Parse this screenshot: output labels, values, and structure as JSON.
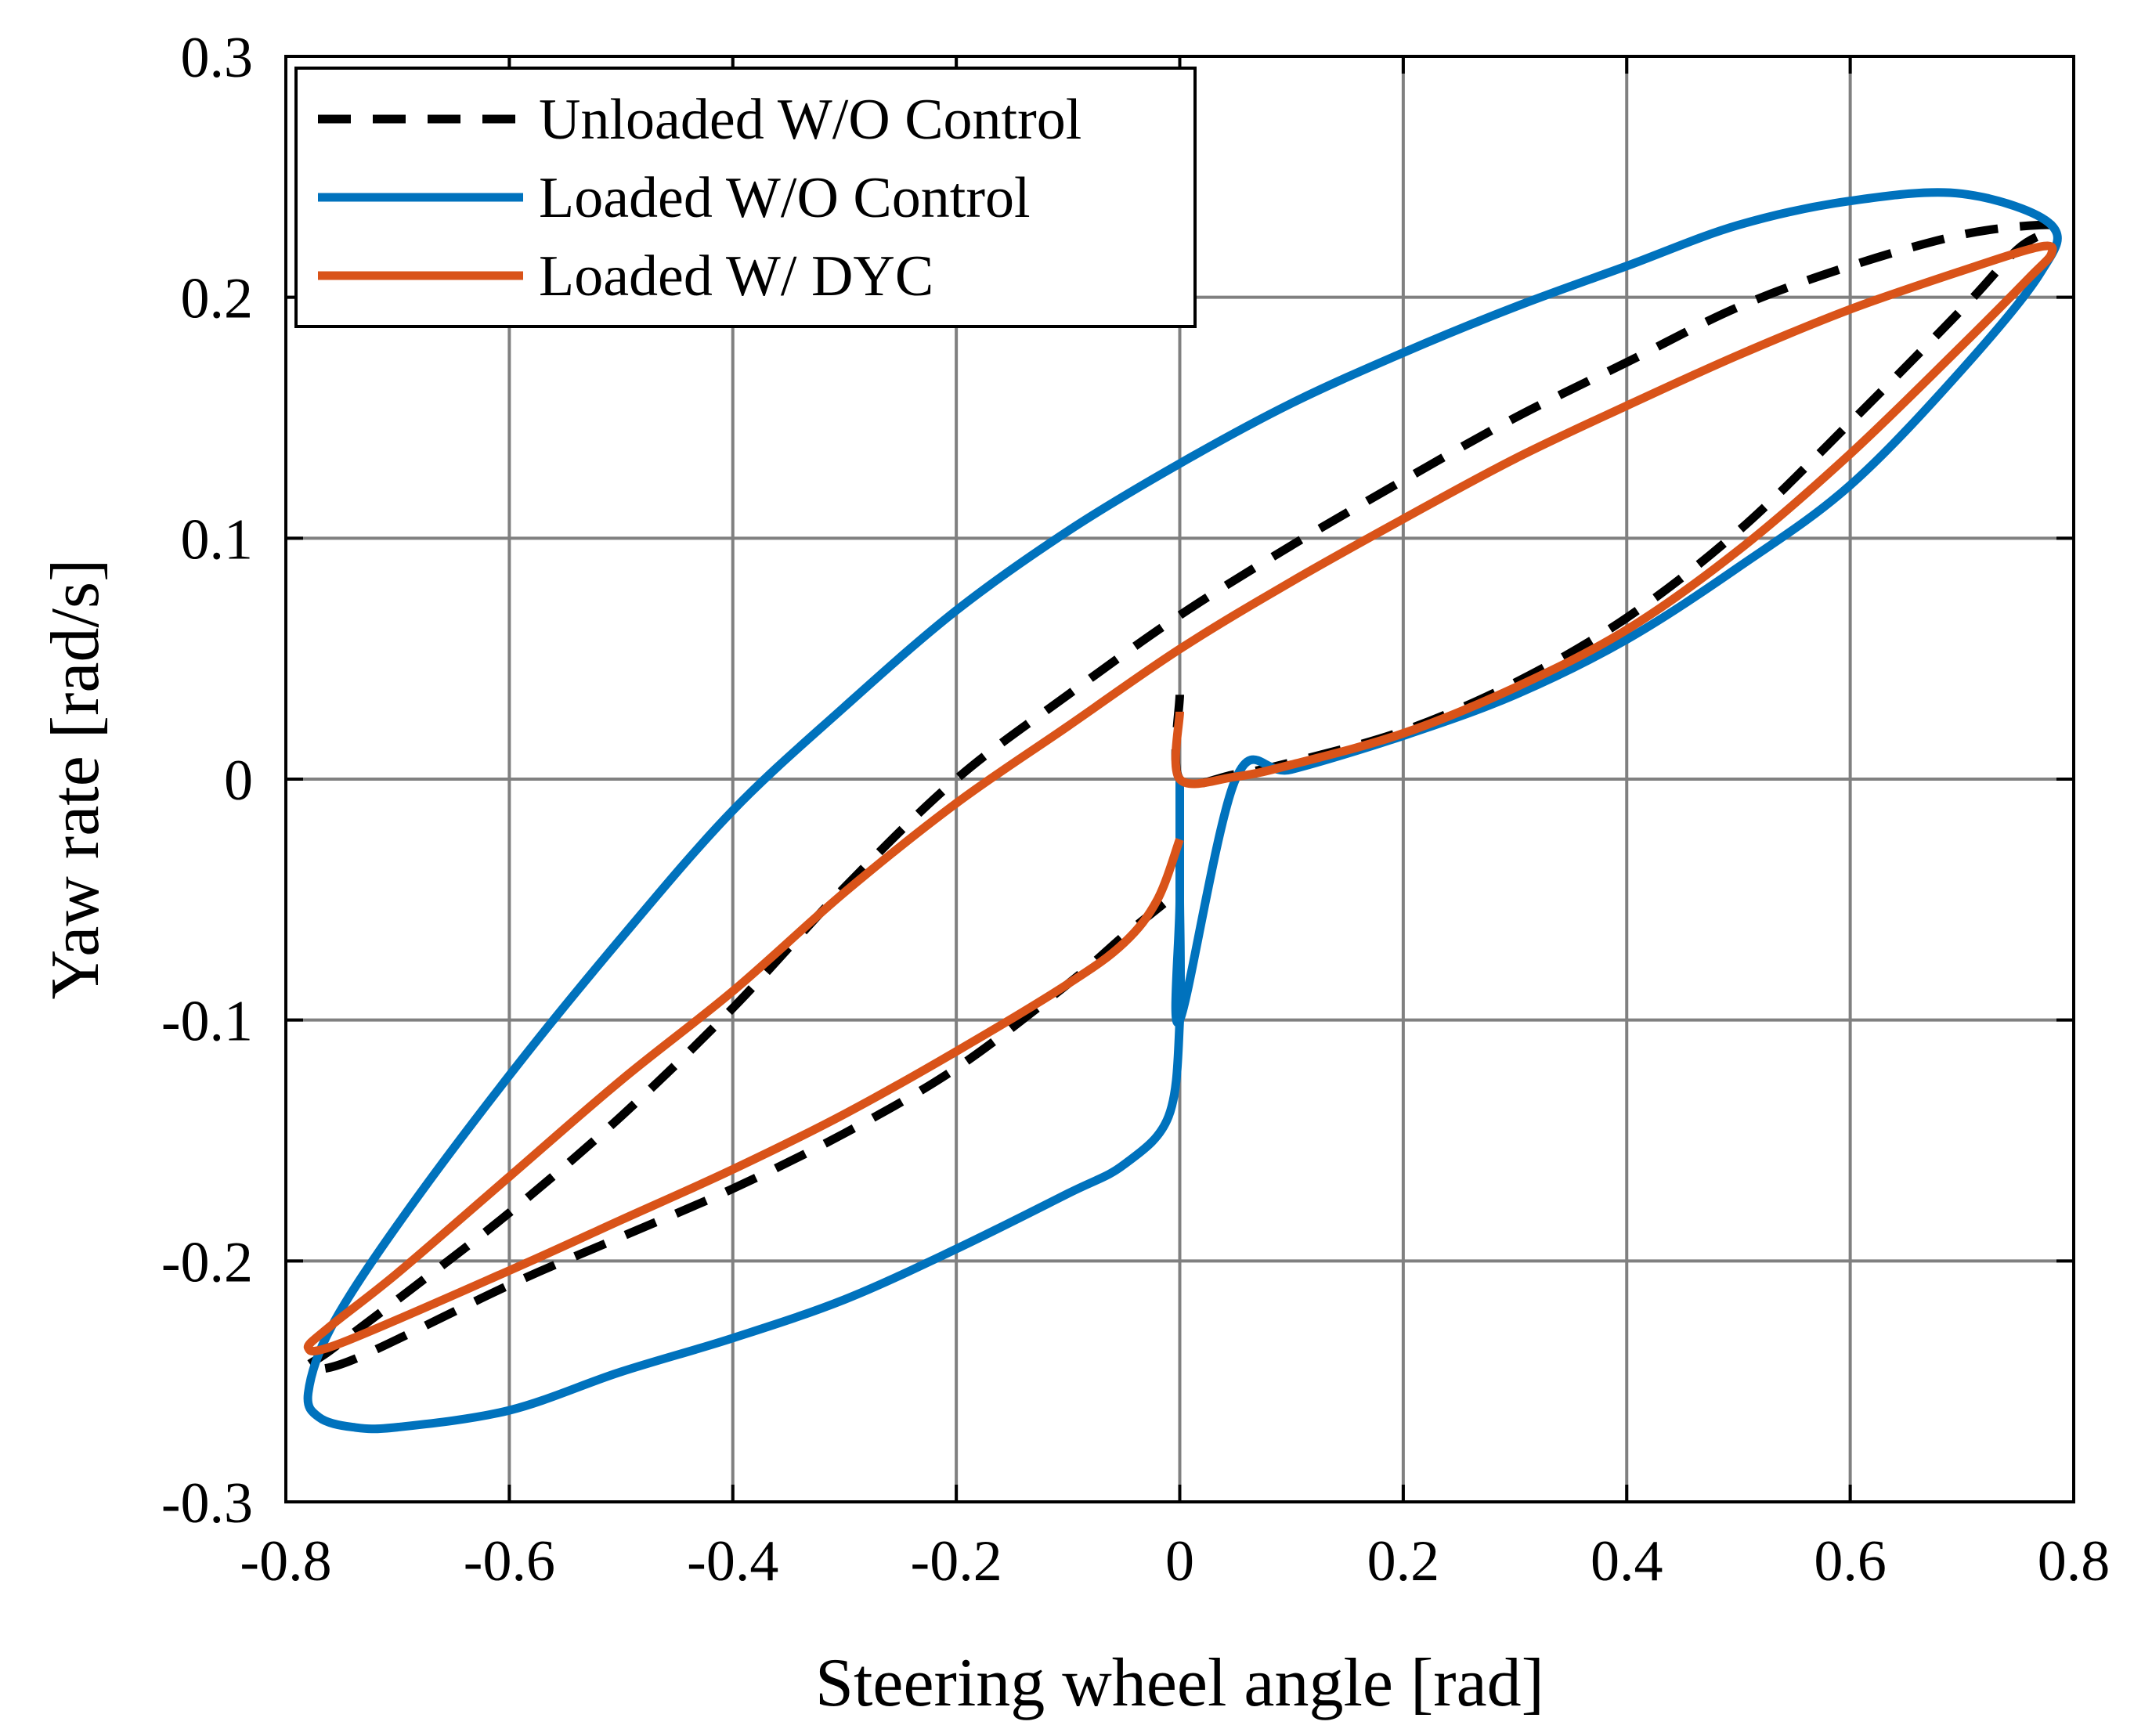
{
  "chart_data": {
    "type": "line",
    "title": "",
    "xlabel": "Steering wheel angle [rad]",
    "ylabel": "Yaw rate [rad/s]",
    "xlim": [
      -0.8,
      0.8
    ],
    "ylim": [
      -0.3,
      0.3
    ],
    "grid": true,
    "legend_position": "top-left",
    "x_ticks": [
      -0.8,
      -0.6,
      -0.4,
      -0.2,
      0,
      0.2,
      0.4,
      0.6,
      0.8
    ],
    "x_tick_labels": [
      "-0.8",
      "-0.6",
      "-0.4",
      "-0.2",
      "0",
      "0.2",
      "0.4",
      "0.6",
      "0.8"
    ],
    "y_ticks": [
      -0.3,
      -0.2,
      -0.1,
      0,
      0.1,
      0.2,
      0.3
    ],
    "y_tick_labels": [
      "-0.3",
      "-0.2",
      "-0.1",
      "0",
      "0.1",
      "0.2",
      "0.3"
    ],
    "series": [
      {
        "name": "Unloaded W/O Control",
        "color": "#000000",
        "style": "dashed",
        "x": [
          0.0,
          0.0,
          0.05,
          0.1,
          0.2,
          0.3,
          0.4,
          0.5,
          0.6,
          0.7,
          0.75,
          0.78,
          0.77,
          0.7,
          0.6,
          0.5,
          0.4,
          0.3,
          0.2,
          0.1,
          0.0,
          -0.1,
          -0.2,
          -0.3,
          -0.4,
          -0.5,
          -0.6,
          -0.7,
          -0.76,
          -0.78,
          -0.74,
          -0.6,
          -0.5,
          -0.4,
          -0.3,
          -0.2,
          -0.1,
          -0.05,
          -0.01,
          0.0
        ],
        "y": [
          0.035,
          0.0,
          0.002,
          0.007,
          0.02,
          0.04,
          0.067,
          0.103,
          0.148,
          0.195,
          0.22,
          0.228,
          0.23,
          0.226,
          0.213,
          0.196,
          0.173,
          0.15,
          0.124,
          0.097,
          0.068,
          0.035,
          0.0,
          -0.045,
          -0.095,
          -0.14,
          -0.18,
          -0.216,
          -0.237,
          -0.244,
          -0.241,
          -0.21,
          -0.19,
          -0.17,
          -0.147,
          -0.12,
          -0.085,
          -0.065,
          -0.05,
          -0.045
        ]
      },
      {
        "name": "Loaded W/O Control",
        "color": "#0072BD",
        "style": "solid",
        "x": [
          0.0,
          0.0,
          0.0,
          0.05,
          0.1,
          0.2,
          0.3,
          0.4,
          0.5,
          0.6,
          0.7,
          0.77,
          0.78,
          0.7,
          0.6,
          0.5,
          0.4,
          0.3,
          0.2,
          0.1,
          0.0,
          -0.1,
          -0.2,
          -0.3,
          -0.4,
          -0.5,
          -0.6,
          -0.7,
          -0.76,
          -0.78,
          -0.77,
          -0.74,
          -0.7,
          -0.6,
          -0.5,
          -0.4,
          -0.3,
          -0.2,
          -0.1,
          -0.05,
          -0.01,
          0.0,
          0.0
        ],
        "y": [
          0.0,
          -0.05,
          -0.1,
          0.0,
          0.004,
          0.018,
          0.035,
          0.058,
          0.088,
          0.122,
          0.17,
          0.21,
          0.23,
          0.243,
          0.24,
          0.23,
          0.213,
          0.196,
          0.177,
          0.156,
          0.131,
          0.103,
          0.07,
          0.03,
          -0.013,
          -0.066,
          -0.123,
          -0.185,
          -0.228,
          -0.255,
          -0.265,
          -0.269,
          -0.269,
          -0.262,
          -0.246,
          -0.232,
          -0.216,
          -0.195,
          -0.172,
          -0.16,
          -0.14,
          -0.1,
          -0.05
        ]
      },
      {
        "name": "Loaded W/ DYC",
        "color": "#D95319",
        "style": "solid",
        "x": [
          0.0,
          0.0,
          0.05,
          0.1,
          0.2,
          0.3,
          0.4,
          0.5,
          0.6,
          0.7,
          0.76,
          0.78,
          0.77,
          0.7,
          0.6,
          0.5,
          0.4,
          0.3,
          0.2,
          0.1,
          0.0,
          -0.1,
          -0.2,
          -0.3,
          -0.4,
          -0.5,
          -0.6,
          -0.7,
          -0.76,
          -0.78,
          -0.75,
          -0.6,
          -0.5,
          -0.4,
          -0.3,
          -0.2,
          -0.1,
          -0.05,
          -0.02,
          0.0
        ],
        "y": [
          0.028,
          0.0,
          0.001,
          0.006,
          0.019,
          0.038,
          0.062,
          0.095,
          0.135,
          0.18,
          0.208,
          0.218,
          0.221,
          0.211,
          0.195,
          0.176,
          0.155,
          0.133,
          0.108,
          0.082,
          0.054,
          0.022,
          -0.01,
          -0.047,
          -0.088,
          -0.125,
          -0.165,
          -0.205,
          -0.227,
          -0.236,
          -0.234,
          -0.204,
          -0.183,
          -0.162,
          -0.139,
          -0.113,
          -0.085,
          -0.068,
          -0.05,
          -0.025
        ]
      }
    ]
  }
}
